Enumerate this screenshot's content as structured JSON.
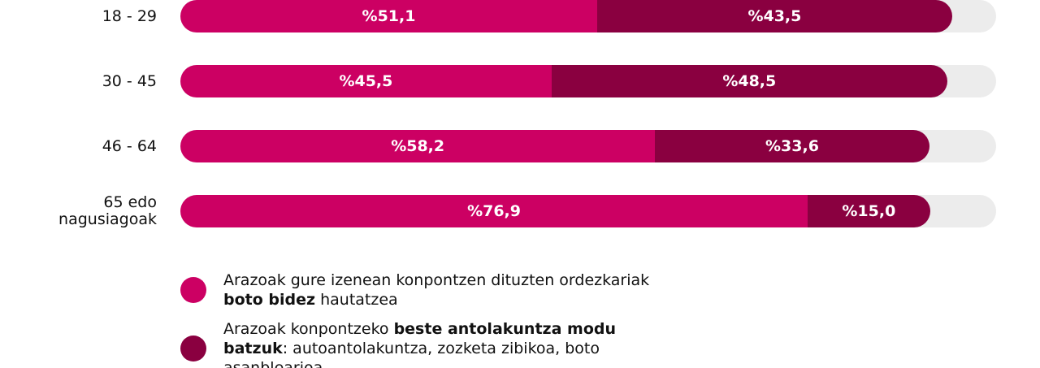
{
  "chart_data": {
    "type": "stacked-bar-horizontal",
    "categories": [
      "18 - 29",
      "30 - 45",
      "46 - 64",
      "65 edo nagusiagoak"
    ],
    "xlim": [
      0,
      100
    ],
    "track_color": "#ececec",
    "series": [
      {
        "name": "Arazoak gure izenean konpontzen dituzten ordezkariak boto bidez hautatzea",
        "emphasis": "boto bidez",
        "color": "#cc0063",
        "values": [
          51.1,
          45.5,
          58.2,
          76.9
        ],
        "value_labels": [
          "%51,1",
          "%45,5",
          "%58,2",
          "%76,9"
        ]
      },
      {
        "name": "Arazoak konpontzeko beste antolakuntza modu batzuk: autoantolakuntza, zozketa zibikoa, boto asanblearioa...",
        "emphasis": "beste antolakuntza modu batzuk",
        "color": "#8a0040",
        "values": [
          43.5,
          48.5,
          33.6,
          15.0
        ],
        "value_labels": [
          "%43,5",
          "%48,5",
          "%33,6",
          "%15,0"
        ]
      }
    ]
  }
}
